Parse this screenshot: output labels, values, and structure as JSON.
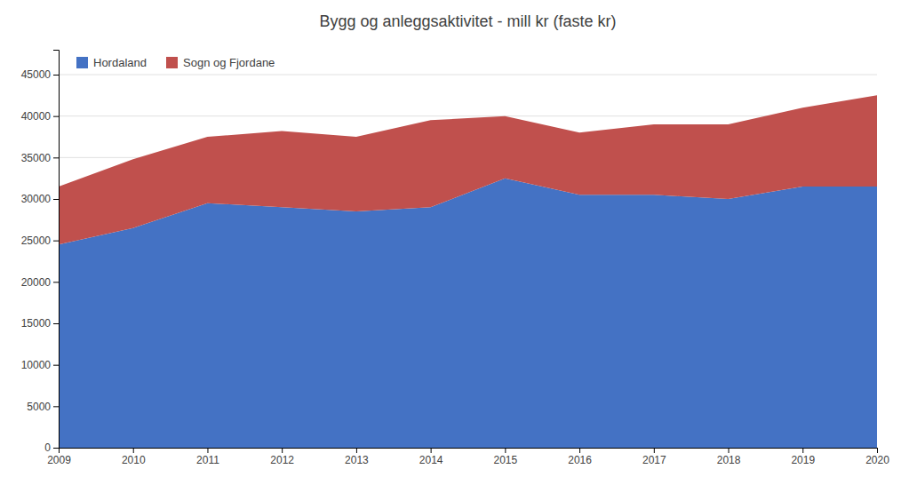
{
  "chart_data": {
    "type": "area",
    "stacked": true,
    "title": "Bygg og anleggsaktivitet - mill kr (faste kr)",
    "x": [
      2009,
      2010,
      2011,
      2012,
      2013,
      2014,
      2015,
      2016,
      2017,
      2018,
      2019,
      2020
    ],
    "xlim": [
      2009,
      2020
    ],
    "xticks": [
      2009,
      2010,
      2011,
      2012,
      2013,
      2014,
      2015,
      2016,
      2017,
      2018,
      2019,
      2020
    ],
    "series": [
      {
        "name": "Hordaland",
        "color": "#4472C4",
        "values": [
          24500,
          26500,
          29500,
          29000,
          28500,
          29000,
          32500,
          30500,
          30500,
          30000,
          31500,
          31500
        ]
      },
      {
        "name": "Sogn og Fjordane",
        "color": "#C0504D",
        "values": [
          7000,
          8300,
          8000,
          9200,
          9000,
          10500,
          7500,
          7500,
          8500,
          9000,
          9500,
          11000
        ]
      }
    ],
    "ylim": [
      0,
      48000
    ],
    "yticks": [
      0,
      5000,
      10000,
      15000,
      20000,
      25000,
      30000,
      35000,
      40000,
      45000
    ],
    "grid": true,
    "legend": "upper left"
  }
}
